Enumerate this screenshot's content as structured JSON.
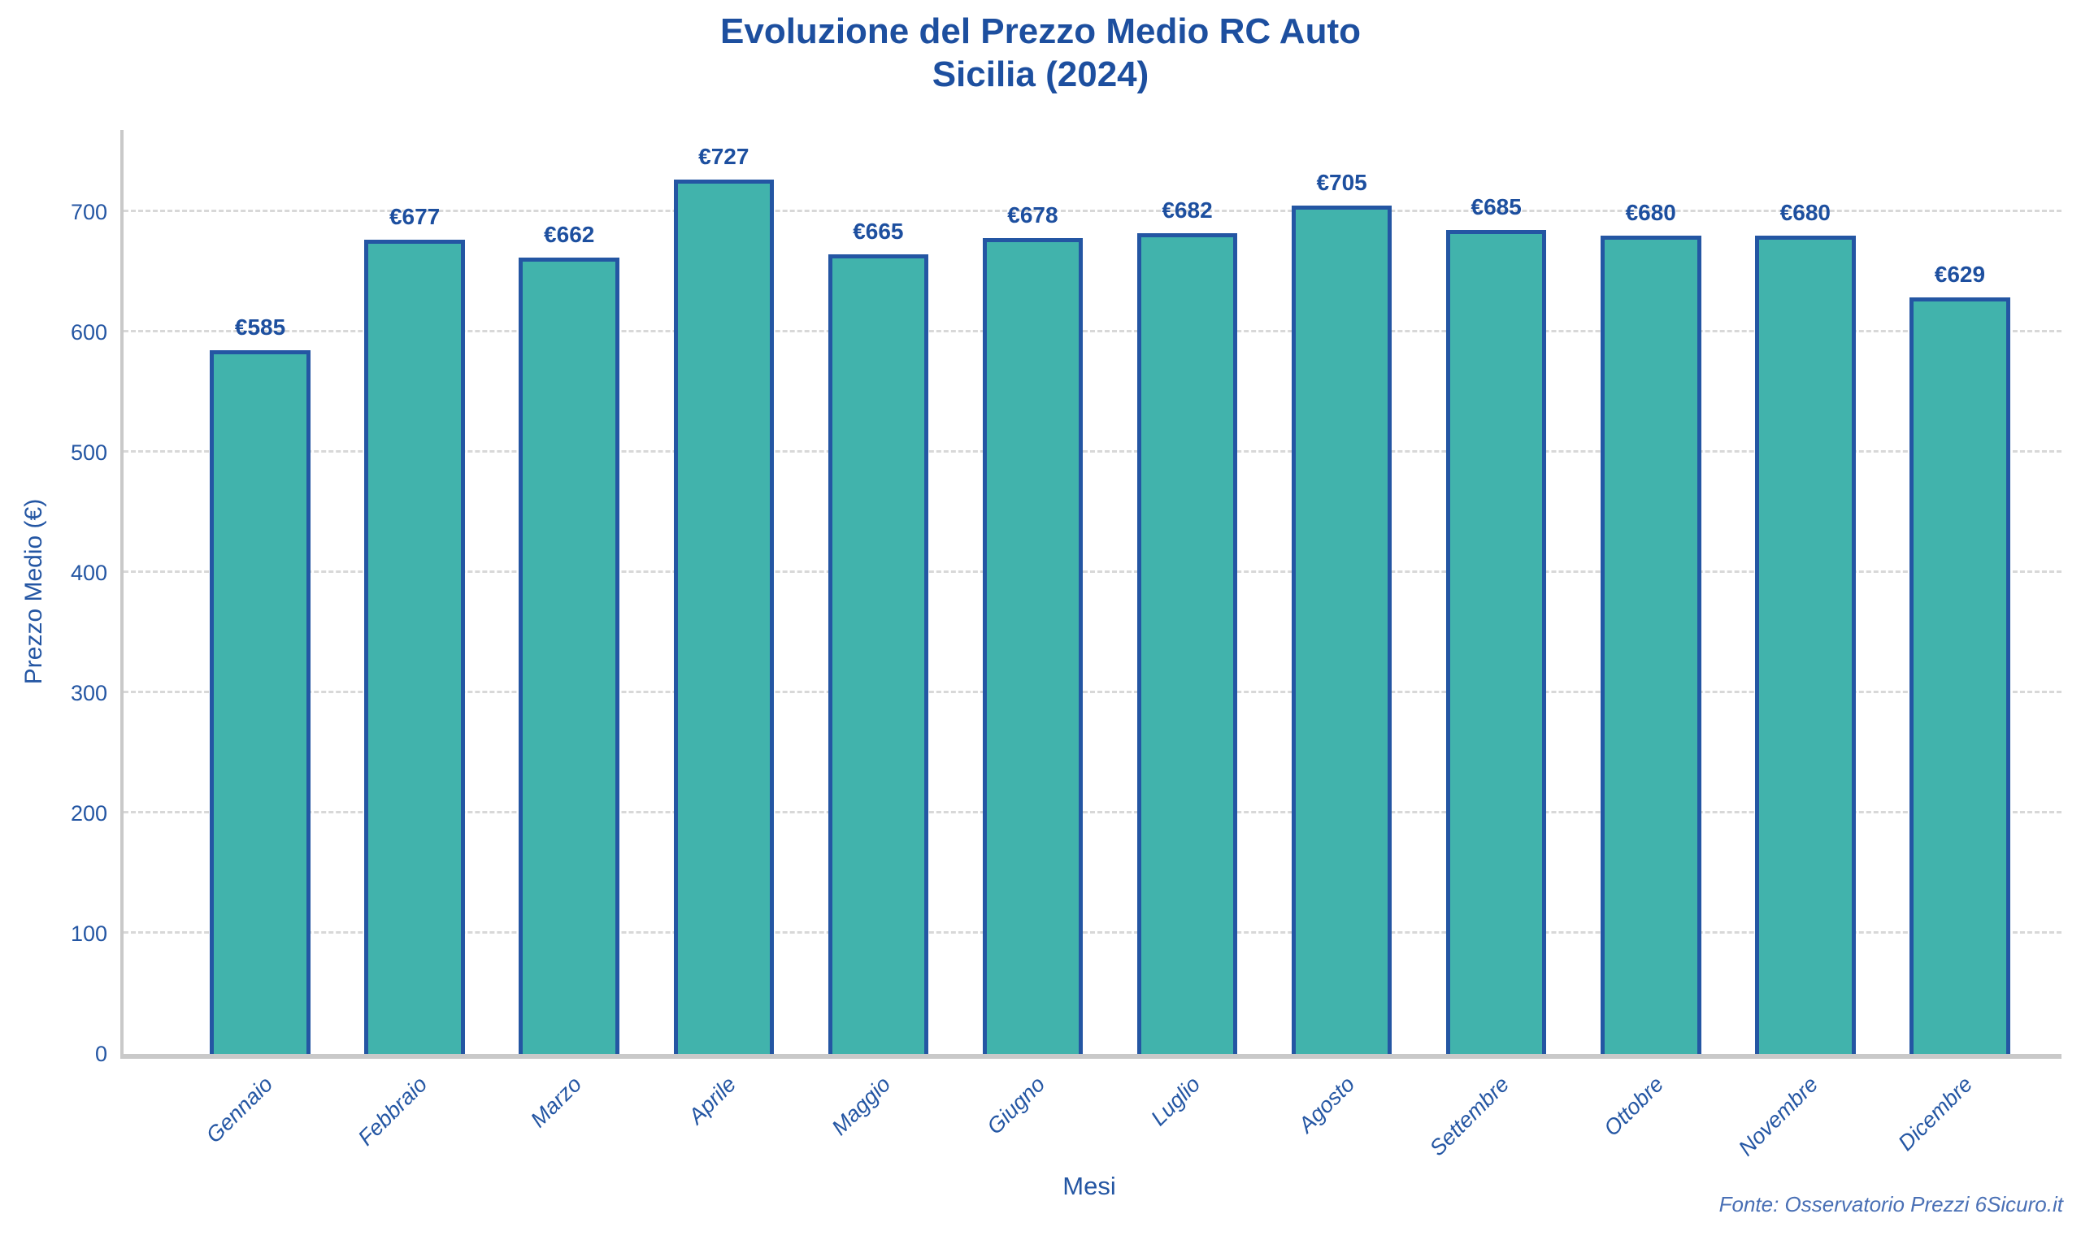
{
  "chart_data": {
    "type": "bar",
    "title": "Evoluzione del Prezzo Medio RC Auto",
    "subtitle": "Sicilia (2024)",
    "categories": [
      "Gennaio",
      "Febbraio",
      "Marzo",
      "Aprile",
      "Maggio",
      "Giugno",
      "Luglio",
      "Agosto",
      "Settembre",
      "Ottobre",
      "Novembre",
      "Dicembre"
    ],
    "values": [
      585,
      677,
      662,
      727,
      665,
      678,
      682,
      705,
      685,
      680,
      680,
      629
    ],
    "value_prefix": "€",
    "value_labels": [
      "€585",
      "€677",
      "€662",
      "€727",
      "€665",
      "€678",
      "€682",
      "€705",
      "€685",
      "€680",
      "€680",
      "€629"
    ],
    "xlabel": "Mesi",
    "ylabel": "Prezzo Medio (€)",
    "ylim": [
      0,
      768
    ],
    "yticks": [
      0,
      100,
      200,
      300,
      400,
      500,
      600,
      700
    ],
    "grid": "horizontal-dashed",
    "legend": false,
    "source": "Fonte: Osservatorio Prezzi 6Sicuro.it",
    "colors": {
      "title": "#1d4f9f",
      "value_labels": "#1d4f9f",
      "axis_text": "#2456a3",
      "bar_fill": "#41b3ac",
      "bar_border": "#2456a3",
      "gridline": "#d8d8d8",
      "axis_line": "#c9c9c9",
      "source_text": "#4a70b5",
      "background": "#ffffff"
    }
  }
}
